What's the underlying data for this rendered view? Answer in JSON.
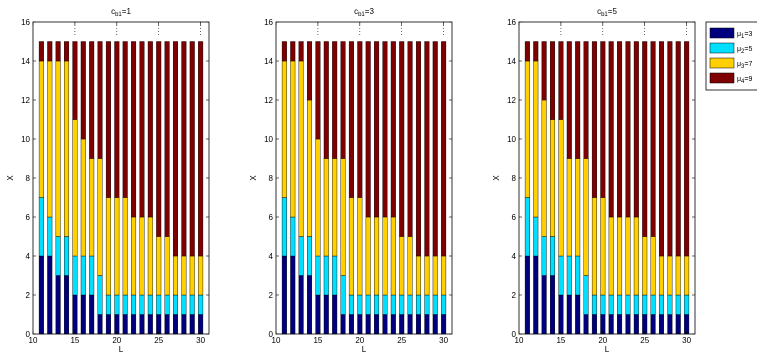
{
  "chart_data": {
    "type": "bar",
    "stacked": true,
    "x": [
      11,
      12,
      13,
      14,
      15,
      16,
      17,
      18,
      19,
      20,
      21,
      22,
      23,
      24,
      25,
      26,
      27,
      28,
      29,
      30
    ],
    "xlim": [
      10,
      31
    ],
    "ylim": [
      0,
      16
    ],
    "xticks": [
      10,
      15,
      20,
      25,
      30
    ],
    "yticks": [
      0,
      2,
      4,
      6,
      8,
      10,
      12,
      14,
      16
    ],
    "xlabel": "L",
    "ylabel": "X",
    "legend": {
      "placement": "outside-top-right",
      "entries": [
        {
          "label": "μ1=3",
          "color": "#00007f"
        },
        {
          "label": "μ2=5",
          "color": "#00dfff"
        },
        {
          "label": "μ3=7",
          "color": "#ffcf00"
        },
        {
          "label": "μ4=9",
          "color": "#7f0000"
        }
      ]
    },
    "panels": [
      {
        "title": "cb1=1",
        "series": [
          {
            "name": "μ1=3",
            "values": [
              4,
              4,
              3,
              3,
              2,
              2,
              2,
              1,
              1,
              1,
              1,
              1,
              1,
              1,
              1,
              1,
              1,
              1,
              1,
              1
            ]
          },
          {
            "name": "μ2=5",
            "values": [
              3,
              2,
              2,
              2,
              2,
              2,
              2,
              2,
              1,
              1,
              1,
              1,
              1,
              1,
              1,
              1,
              1,
              1,
              1,
              1
            ]
          },
          {
            "name": "μ3=7",
            "values": [
              7,
              8,
              9,
              9,
              7,
              6,
              5,
              6,
              5,
              5,
              5,
              4,
              4,
              4,
              3,
              3,
              2,
              2,
              2,
              2
            ]
          },
          {
            "name": "μ4=9",
            "values": [
              1,
              1,
              1,
              1,
              4,
              5,
              6,
              6,
              8,
              8,
              8,
              9,
              9,
              9,
              10,
              10,
              11,
              11,
              11,
              11
            ]
          }
        ]
      },
      {
        "title": "cb1=3",
        "series": [
          {
            "name": "μ1=3",
            "values": [
              4,
              4,
              3,
              3,
              2,
              2,
              2,
              1,
              1,
              1,
              1,
              1,
              1,
              1,
              1,
              1,
              1,
              1,
              1,
              1
            ]
          },
          {
            "name": "μ2=5",
            "values": [
              3,
              2,
              2,
              2,
              2,
              2,
              2,
              2,
              1,
              1,
              1,
              1,
              1,
              1,
              1,
              1,
              1,
              1,
              1,
              1
            ]
          },
          {
            "name": "μ3=7",
            "values": [
              7,
              8,
              9,
              7,
              6,
              5,
              5,
              6,
              5,
              5,
              4,
              4,
              4,
              4,
              3,
              3,
              2,
              2,
              2,
              2
            ]
          },
          {
            "name": "μ4=9",
            "values": [
              1,
              1,
              1,
              3,
              5,
              6,
              6,
              6,
              8,
              8,
              9,
              9,
              9,
              9,
              10,
              10,
              11,
              11,
              11,
              11
            ]
          }
        ]
      },
      {
        "title": "cb1=5",
        "series": [
          {
            "name": "μ1=3",
            "values": [
              4,
              4,
              3,
              3,
              2,
              2,
              2,
              1,
              1,
              1,
              1,
              1,
              1,
              1,
              1,
              1,
              1,
              1,
              1,
              1
            ]
          },
          {
            "name": "μ2=5",
            "values": [
              3,
              2,
              2,
              2,
              2,
              2,
              2,
              2,
              1,
              1,
              1,
              1,
              1,
              1,
              1,
              1,
              1,
              1,
              1,
              1
            ]
          },
          {
            "name": "μ3=7",
            "values": [
              7,
              8,
              7,
              6,
              7,
              5,
              5,
              6,
              5,
              5,
              4,
              4,
              4,
              4,
              3,
              3,
              2,
              2,
              2,
              2
            ]
          },
          {
            "name": "μ4=9",
            "values": [
              1,
              1,
              3,
              4,
              4,
              6,
              6,
              6,
              8,
              8,
              9,
              9,
              9,
              9,
              10,
              10,
              11,
              11,
              11,
              11
            ]
          }
        ]
      }
    ]
  }
}
